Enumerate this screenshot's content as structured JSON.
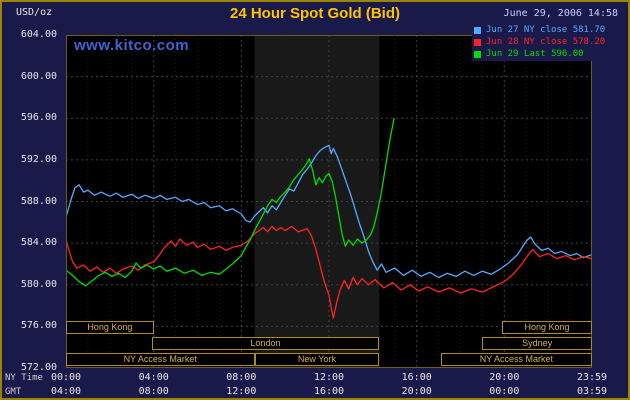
{
  "header": {
    "unit": "USD/oz",
    "title": "24 Hour Spot Gold (Bid)",
    "datetime": "June 29, 2006 14:58",
    "watermark": "www.kitco.com"
  },
  "legend": {
    "items": [
      {
        "label": "Jun 27 NY close 581.70",
        "color": "#55aaff"
      },
      {
        "label": "Jun 28 NY close 578.20",
        "color": "#ff2222"
      },
      {
        "label": "Jun 29 Last 596.00",
        "color": "#00dd00"
      }
    ]
  },
  "footer": {
    "ny_label": "NY Time",
    "gmt_label": "GMT"
  },
  "colors": {
    "background": "#1a1a4a",
    "plot_background": "#000000",
    "session_band": "#191919",
    "grid_major": "#424242",
    "grid_minor": "#1d1d1d",
    "outer_border": "#9c8400",
    "plot_border": "#6e5e10",
    "title": "#ffc400",
    "axis_text": "#e6e6e6",
    "date_text": "#ccccff",
    "watermark": "#4064d0",
    "session_border": "#b08d20",
    "session_text": "#d4af50"
  },
  "sessions": [
    {
      "label": "Hong Kong",
      "row": 0,
      "start": 0,
      "end": 4.0
    },
    {
      "label": "Hong Kong",
      "row": 0,
      "start": 19.9,
      "end": 24
    },
    {
      "label": "London",
      "row": 1,
      "start": 3.9,
      "end": 14.3
    },
    {
      "label": "Sydney",
      "row": 1,
      "start": 19.0,
      "end": 24
    },
    {
      "label": "NY Access Market",
      "row": 2,
      "start": 0,
      "end": 8.6
    },
    {
      "label": "New York",
      "row": 2,
      "start": 8.6,
      "end": 14.3
    },
    {
      "label": "NY Access Market",
      "row": 2,
      "start": 17.1,
      "end": 24
    }
  ],
  "chart_data": {
    "type": "line",
    "title": "24 Hour Spot Gold (Bid)",
    "xlabel": "Time (NY Time / GMT)",
    "ylabel": "USD/oz",
    "xlim": [
      0,
      24
    ],
    "ylim": [
      572,
      604
    ],
    "grid": true,
    "legend_position": "top-right",
    "session_band": [
      8.6,
      14.3
    ],
    "axes": {
      "y_ticks": [
        "604.00",
        "600.00",
        "596.00",
        "592.00",
        "588.00",
        "584.00",
        "580.00",
        "576.00",
        "572.00"
      ],
      "x_tick_hours": [
        0,
        4,
        8,
        12,
        16,
        20,
        24
      ],
      "x_ticks_ny": [
        "00:00",
        "04:00",
        "08:00",
        "12:00",
        "16:00",
        "20:00",
        "23:59"
      ],
      "x_ticks_gmt": [
        "04:00",
        "08:00",
        "12:00",
        "16:00",
        "20:00",
        "00:00",
        "03:59"
      ]
    },
    "series": [
      {
        "name": "Jun 27",
        "close_label": "NY close 581.70",
        "color": "#55aaff",
        "points": [
          [
            0,
            586.5
          ],
          [
            0.2,
            588.0
          ],
          [
            0.4,
            589.3
          ],
          [
            0.6,
            589.6
          ],
          [
            0.8,
            588.9
          ],
          [
            1.0,
            589.1
          ],
          [
            1.3,
            588.6
          ],
          [
            1.6,
            588.9
          ],
          [
            2.0,
            588.5
          ],
          [
            2.3,
            588.8
          ],
          [
            2.6,
            588.4
          ],
          [
            3.0,
            588.7
          ],
          [
            3.3,
            588.3
          ],
          [
            3.6,
            588.6
          ],
          [
            4.0,
            588.3
          ],
          [
            4.3,
            588.6
          ],
          [
            4.6,
            588.2
          ],
          [
            5.0,
            588.4
          ],
          [
            5.3,
            588.0
          ],
          [
            5.6,
            588.2
          ],
          [
            6.0,
            587.7
          ],
          [
            6.3,
            587.9
          ],
          [
            6.6,
            587.4
          ],
          [
            7.0,
            587.6
          ],
          [
            7.3,
            587.1
          ],
          [
            7.6,
            587.3
          ],
          [
            8.0,
            586.8
          ],
          [
            8.2,
            586.2
          ],
          [
            8.4,
            586.0
          ],
          [
            8.6,
            586.6
          ],
          [
            8.8,
            587.0
          ],
          [
            9.0,
            587.4
          ],
          [
            9.2,
            586.9
          ],
          [
            9.4,
            587.6
          ],
          [
            9.6,
            587.2
          ],
          [
            9.8,
            587.9
          ],
          [
            10.0,
            588.6
          ],
          [
            10.2,
            589.2
          ],
          [
            10.4,
            589.0
          ],
          [
            10.6,
            589.8
          ],
          [
            10.8,
            590.6
          ],
          [
            11.0,
            591.1
          ],
          [
            11.2,
            591.7
          ],
          [
            11.4,
            592.4
          ],
          [
            11.6,
            592.9
          ],
          [
            11.8,
            593.2
          ],
          [
            12.0,
            593.4
          ],
          [
            12.1,
            592.6
          ],
          [
            12.2,
            593.1
          ],
          [
            12.4,
            592.2
          ],
          [
            12.6,
            591.0
          ],
          [
            12.8,
            589.8
          ],
          [
            13.0,
            588.6
          ],
          [
            13.2,
            587.2
          ],
          [
            13.4,
            585.8
          ],
          [
            13.6,
            584.6
          ],
          [
            13.8,
            583.2
          ],
          [
            14.0,
            582.2
          ],
          [
            14.2,
            581.4
          ],
          [
            14.4,
            582.0
          ],
          [
            14.6,
            581.2
          ],
          [
            15.0,
            581.6
          ],
          [
            15.4,
            580.9
          ],
          [
            15.8,
            581.4
          ],
          [
            16.2,
            580.8
          ],
          [
            16.6,
            581.2
          ],
          [
            17.0,
            580.7
          ],
          [
            17.4,
            581.1
          ],
          [
            17.8,
            580.8
          ],
          [
            18.2,
            581.3
          ],
          [
            18.6,
            580.9
          ],
          [
            19.0,
            581.3
          ],
          [
            19.4,
            581.0
          ],
          [
            19.8,
            581.5
          ],
          [
            20.2,
            582.1
          ],
          [
            20.6,
            582.9
          ],
          [
            21.0,
            584.2
          ],
          [
            21.2,
            584.6
          ],
          [
            21.4,
            583.9
          ],
          [
            21.7,
            583.3
          ],
          [
            22.0,
            583.5
          ],
          [
            22.3,
            583.0
          ],
          [
            22.6,
            583.2
          ],
          [
            23.0,
            582.8
          ],
          [
            23.3,
            583.0
          ],
          [
            23.6,
            582.6
          ],
          [
            24,
            582.9
          ]
        ]
      },
      {
        "name": "Jun 28",
        "close_label": "NY close 578.20",
        "color": "#ff2222",
        "points": [
          [
            0,
            584.3
          ],
          [
            0.15,
            583.2
          ],
          [
            0.3,
            582.2
          ],
          [
            0.5,
            581.6
          ],
          [
            0.8,
            581.9
          ],
          [
            1.1,
            581.3
          ],
          [
            1.4,
            581.7
          ],
          [
            1.7,
            581.2
          ],
          [
            2.0,
            581.6
          ],
          [
            2.3,
            581.1
          ],
          [
            2.6,
            581.5
          ],
          [
            3.0,
            581.8
          ],
          [
            3.3,
            581.4
          ],
          [
            3.6,
            581.9
          ],
          [
            4.0,
            582.2
          ],
          [
            4.2,
            582.7
          ],
          [
            4.5,
            583.6
          ],
          [
            4.8,
            584.2
          ],
          [
            5.0,
            583.7
          ],
          [
            5.2,
            584.4
          ],
          [
            5.5,
            583.8
          ],
          [
            5.8,
            584.1
          ],
          [
            6.0,
            583.6
          ],
          [
            6.3,
            583.9
          ],
          [
            6.6,
            583.4
          ],
          [
            7.0,
            583.7
          ],
          [
            7.3,
            583.3
          ],
          [
            7.6,
            583.6
          ],
          [
            8.0,
            583.8
          ],
          [
            8.3,
            584.2
          ],
          [
            8.6,
            584.9
          ],
          [
            9.0,
            585.5
          ],
          [
            9.2,
            585.1
          ],
          [
            9.4,
            585.6
          ],
          [
            9.6,
            585.2
          ],
          [
            9.8,
            585.5
          ],
          [
            10.0,
            585.2
          ],
          [
            10.3,
            585.6
          ],
          [
            10.6,
            585.1
          ],
          [
            11.0,
            585.4
          ],
          [
            11.2,
            584.7
          ],
          [
            11.4,
            583.4
          ],
          [
            11.6,
            581.8
          ],
          [
            11.8,
            580.2
          ],
          [
            12.0,
            579.0
          ],
          [
            12.1,
            577.8
          ],
          [
            12.2,
            576.8
          ],
          [
            12.35,
            578.3
          ],
          [
            12.5,
            579.5
          ],
          [
            12.7,
            580.4
          ],
          [
            12.9,
            579.6
          ],
          [
            13.1,
            580.7
          ],
          [
            13.3,
            580.0
          ],
          [
            13.5,
            580.6
          ],
          [
            13.8,
            580.0
          ],
          [
            14.1,
            580.5
          ],
          [
            14.5,
            579.7
          ],
          [
            14.9,
            580.2
          ],
          [
            15.3,
            579.5
          ],
          [
            15.7,
            580.0
          ],
          [
            16.1,
            579.4
          ],
          [
            16.5,
            579.8
          ],
          [
            17.0,
            579.3
          ],
          [
            17.5,
            579.7
          ],
          [
            18.0,
            579.2
          ],
          [
            18.5,
            579.6
          ],
          [
            19.0,
            579.3
          ],
          [
            19.5,
            579.8
          ],
          [
            20.0,
            580.3
          ],
          [
            20.4,
            581.0
          ],
          [
            20.8,
            582.0
          ],
          [
            21.1,
            582.9
          ],
          [
            21.3,
            583.4
          ],
          [
            21.6,
            582.7
          ],
          [
            22.0,
            583.0
          ],
          [
            22.4,
            582.5
          ],
          [
            22.8,
            582.8
          ],
          [
            23.2,
            582.4
          ],
          [
            23.6,
            582.7
          ],
          [
            24,
            582.5
          ]
        ]
      },
      {
        "name": "Jun 29",
        "close_label": "Last 596.00",
        "color": "#00dd00",
        "points": [
          [
            0,
            581.4
          ],
          [
            0.3,
            580.9
          ],
          [
            0.6,
            580.3
          ],
          [
            0.9,
            579.9
          ],
          [
            1.2,
            580.4
          ],
          [
            1.5,
            580.9
          ],
          [
            1.8,
            581.2
          ],
          [
            2.1,
            580.8
          ],
          [
            2.4,
            581.1
          ],
          [
            2.7,
            580.7
          ],
          [
            3.0,
            581.3
          ],
          [
            3.2,
            582.1
          ],
          [
            3.4,
            581.6
          ],
          [
            3.7,
            581.9
          ],
          [
            4.0,
            581.5
          ],
          [
            4.3,
            581.8
          ],
          [
            4.6,
            581.3
          ],
          [
            5.0,
            581.6
          ],
          [
            5.4,
            581.1
          ],
          [
            5.8,
            581.4
          ],
          [
            6.2,
            580.9
          ],
          [
            6.6,
            581.2
          ],
          [
            7.0,
            581.0
          ],
          [
            7.3,
            581.5
          ],
          [
            7.6,
            582.0
          ],
          [
            8.0,
            582.8
          ],
          [
            8.2,
            583.6
          ],
          [
            8.4,
            584.3
          ],
          [
            8.6,
            585.2
          ],
          [
            8.8,
            586.0
          ],
          [
            9.0,
            586.8
          ],
          [
            9.2,
            587.6
          ],
          [
            9.4,
            588.2
          ],
          [
            9.6,
            587.9
          ],
          [
            9.8,
            588.5
          ],
          [
            10.0,
            588.9
          ],
          [
            10.2,
            589.4
          ],
          [
            10.4,
            590.1
          ],
          [
            10.6,
            590.6
          ],
          [
            10.8,
            591.1
          ],
          [
            11.0,
            591.7
          ],
          [
            11.1,
            592.1
          ],
          [
            11.25,
            591.0
          ],
          [
            11.4,
            589.6
          ],
          [
            11.55,
            590.3
          ],
          [
            11.7,
            589.8
          ],
          [
            11.85,
            590.4
          ],
          [
            12.0,
            590.7
          ],
          [
            12.15,
            589.9
          ],
          [
            12.3,
            588.4
          ],
          [
            12.45,
            586.6
          ],
          [
            12.6,
            584.8
          ],
          [
            12.75,
            583.7
          ],
          [
            12.9,
            584.3
          ],
          [
            13.1,
            583.8
          ],
          [
            13.3,
            584.4
          ],
          [
            13.5,
            584.0
          ],
          [
            13.7,
            584.3
          ],
          [
            13.9,
            584.8
          ],
          [
            14.05,
            585.6
          ],
          [
            14.2,
            586.9
          ],
          [
            14.35,
            588.4
          ],
          [
            14.5,
            590.3
          ],
          [
            14.65,
            592.3
          ],
          [
            14.8,
            594.2
          ],
          [
            14.97,
            596.0
          ]
        ]
      }
    ]
  }
}
